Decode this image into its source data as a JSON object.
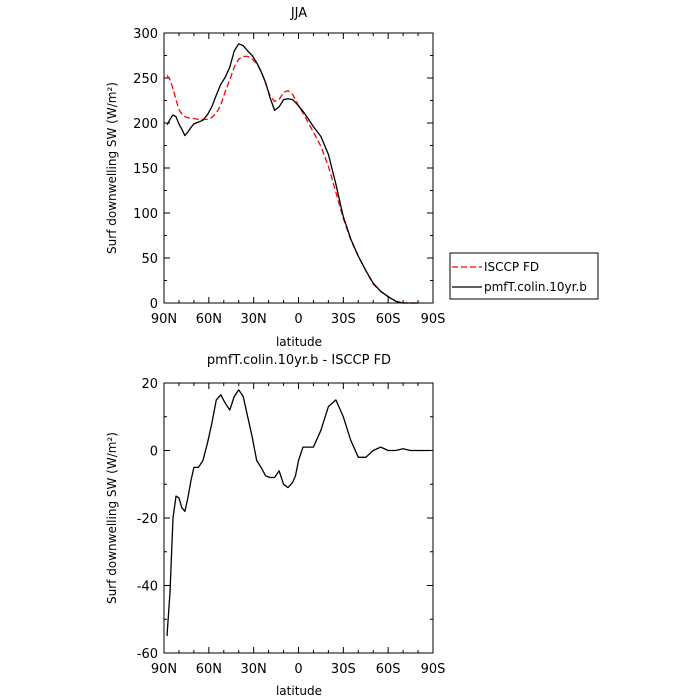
{
  "chart_data": [
    {
      "type": "line",
      "title": "JJA",
      "xlabel": "latitude",
      "ylabel": "Surf downwelling SW (W/m²)",
      "x_tick_labels": [
        "90N",
        "60N",
        "30N",
        "0",
        "30S",
        "60S",
        "90S"
      ],
      "x_ticks": [
        90,
        60,
        30,
        0,
        -30,
        -60,
        -90
      ],
      "xlim": [
        90,
        -90
      ],
      "ylim": [
        0,
        300
      ],
      "y_ticks": [
        0,
        50,
        100,
        150,
        200,
        250,
        300
      ],
      "grid": false,
      "legend_position": "right",
      "series": [
        {
          "name": "ISCCP FD",
          "color": "#ff0000",
          "dash": "dashed",
          "x": [
            88,
            86,
            84,
            82,
            80,
            78,
            76,
            74,
            72,
            70,
            67,
            64,
            61,
            58,
            55,
            52,
            49,
            46,
            43,
            40,
            37,
            34,
            31,
            28,
            25,
            22,
            19,
            16,
            13,
            10,
            7,
            4,
            2,
            0,
            -3,
            -6,
            -10,
            -15,
            -20,
            -25,
            -30,
            -35,
            -40,
            -45,
            -50,
            -55,
            -60,
            -65,
            -70,
            -75,
            -80
          ],
          "y": [
            253,
            248,
            238,
            226,
            215,
            210,
            207,
            206,
            205,
            205,
            204,
            204,
            204,
            206,
            211,
            220,
            235,
            248,
            262,
            271,
            274,
            274,
            271,
            266,
            258,
            244,
            230,
            224,
            226,
            234,
            236,
            232,
            226,
            219,
            211,
            202,
            190,
            174,
            152,
            123,
            94,
            70,
            52,
            36,
            21,
            13,
            7,
            2,
            0,
            0,
            0
          ]
        },
        {
          "name": "pmfT.colin.10yr.b",
          "color": "#000000",
          "dash": "solid",
          "x": [
            88,
            86,
            84,
            82,
            80,
            78,
            76,
            74,
            72,
            70,
            67,
            64,
            61,
            58,
            55,
            52,
            49,
            46,
            43,
            40,
            37,
            34,
            31,
            28,
            25,
            22,
            19,
            16,
            13,
            10,
            7,
            4,
            2,
            0,
            -3,
            -6,
            -10,
            -15,
            -20,
            -25,
            -30,
            -35,
            -40,
            -45,
            -50,
            -55,
            -60,
            -65,
            -70,
            -75,
            -80
          ],
          "y": [
            198,
            204,
            209,
            207,
            199,
            193,
            186,
            190,
            195,
            199,
            201,
            203,
            209,
            218,
            231,
            243,
            251,
            262,
            280,
            288,
            286,
            280,
            275,
            267,
            257,
            245,
            228,
            214,
            218,
            226,
            227,
            226,
            223,
            219,
            213,
            206,
            196,
            185,
            165,
            132,
            96,
            71,
            52,
            36,
            22,
            13,
            7,
            2,
            0,
            0,
            0
          ]
        }
      ]
    },
    {
      "type": "line",
      "title": "pmfT.colin.10yr.b - ISCCP FD",
      "xlabel": "latitude",
      "ylabel": "Surf downwelling SW (W/m²)",
      "x_tick_labels": [
        "90N",
        "60N",
        "30N",
        "0",
        "30S",
        "60S",
        "90S"
      ],
      "x_ticks": [
        90,
        60,
        30,
        0,
        -30,
        -60,
        -90
      ],
      "xlim": [
        90,
        -90
      ],
      "ylim": [
        -60,
        20
      ],
      "y_ticks": [
        -60,
        -40,
        -20,
        0,
        20
      ],
      "grid": false,
      "series": [
        {
          "color": "#000000",
          "dash": "solid",
          "x": [
            88,
            86,
            84,
            82,
            80,
            78,
            76,
            74,
            72,
            70,
            67,
            64,
            61,
            58,
            55,
            52,
            49,
            46,
            43,
            40,
            37,
            34,
            31,
            28,
            25,
            22,
            19,
            16,
            13,
            10,
            7,
            4,
            2,
            0,
            -3,
            -6,
            -10,
            -15,
            -20,
            -25,
            -30,
            -35,
            -40,
            -45,
            -50,
            -55,
            -60,
            -65,
            -70,
            -75,
            -80,
            -85,
            -88
          ],
          "y": [
            -55,
            -42,
            -20,
            -13.5,
            -14,
            -17,
            -18,
            -14,
            -9,
            -5,
            -5,
            -3,
            2,
            8,
            15,
            16.5,
            14,
            12,
            16,
            18,
            16,
            10,
            4,
            -3,
            -5,
            -7.5,
            -8,
            -8,
            -6,
            -10,
            -11,
            -9.5,
            -7.5,
            -3,
            1,
            1,
            1,
            6,
            13,
            15,
            10,
            3,
            -2,
            -2,
            0,
            1,
            0,
            0,
            0.5,
            0,
            0,
            0,
            0
          ]
        }
      ]
    }
  ]
}
